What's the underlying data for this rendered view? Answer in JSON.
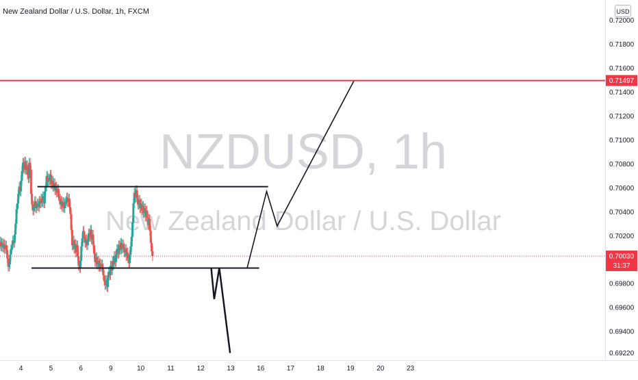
{
  "header": {
    "title": "New Zealand Dollar / U.S. Dollar, 1h, FXCM",
    "currency": "USD"
  },
  "watermark": {
    "symbol": "NZDUSD, 1h",
    "description": "New Zealand Dollar / U.S. Dollar"
  },
  "chart_data": {
    "type": "candlestick",
    "symbol": "NZDUSD",
    "interval": "1h",
    "xlim": [
      3.3,
      23.5
    ],
    "ylim": [
      0.6916,
      0.7217
    ],
    "x_ticks": [
      {
        "label": "4",
        "x": 4
      },
      {
        "label": "5",
        "x": 5
      },
      {
        "label": "6",
        "x": 6
      },
      {
        "label": "9",
        "x": 7
      },
      {
        "label": "10",
        "x": 8
      },
      {
        "label": "11",
        "x": 9
      },
      {
        "label": "12",
        "x": 10
      },
      {
        "label": "13",
        "x": 11
      },
      {
        "label": "16",
        "x": 12
      },
      {
        "label": "17",
        "x": 13
      },
      {
        "label": "18",
        "x": 14
      },
      {
        "label": "19",
        "x": 15
      },
      {
        "label": "20",
        "x": 16
      },
      {
        "label": "23",
        "x": 17
      }
    ],
    "y_ticks": [
      0.6922,
      0.694,
      0.696,
      0.698,
      0.702,
      0.704,
      0.706,
      0.708,
      0.71,
      0.712,
      0.714,
      0.716,
      0.718,
      0.72
    ],
    "price_lines": [
      {
        "name": "target",
        "value": 0.71497,
        "label": "0.71497",
        "color": "#f23645"
      }
    ],
    "last_price": {
      "value": 0.7003,
      "label": "0.70030",
      "countdown": "31:37",
      "color": "#f23645"
    },
    "hlines": [
      {
        "value": 0.7061,
        "x_start": 4.55,
        "x_end": 12.25
      },
      {
        "value": 0.6993,
        "x_start": 4.35,
        "x_end": 11.95
      }
    ],
    "projections": [
      {
        "points": [
          [
            10.35,
            0.6993
          ],
          [
            10.45,
            0.6967
          ],
          [
            10.62,
            0.6993
          ],
          [
            10.98,
            0.6922
          ]
        ]
      },
      {
        "points": [
          [
            11.55,
            0.6993
          ],
          [
            12.2,
            0.7057
          ],
          [
            12.55,
            0.7028
          ],
          [
            15.12,
            0.71497
          ]
        ]
      }
    ],
    "candles": {
      "start_x": 3.3,
      "step": 0.0305,
      "up_color": "#26a69a",
      "down_color": "#ef5350",
      "closes": [
        0.7015,
        0.7011,
        0.7014,
        0.701,
        0.7013,
        0.7009,
        0.7012,
        0.7008,
        0.7001,
        0.6994,
        0.6996,
        0.7004,
        0.7009,
        0.7012,
        0.7016,
        0.7014,
        0.7021,
        0.703,
        0.7042,
        0.7047,
        0.7055,
        0.7061,
        0.7057,
        0.7066,
        0.7074,
        0.7081,
        0.7076,
        0.7082,
        0.7075,
        0.7079,
        0.7071,
        0.7068,
        0.7081,
        0.7075,
        0.7055,
        0.7046,
        0.7041,
        0.7044,
        0.7049,
        0.7043,
        0.7045,
        0.7047,
        0.7044,
        0.7049,
        0.7047,
        0.7051,
        0.7048,
        0.7053,
        0.7047,
        0.7057,
        0.7061,
        0.707,
        0.7065,
        0.7068,
        0.7066,
        0.7071,
        0.7063,
        0.7066,
        0.7061,
        0.7064,
        0.7058,
        0.7061,
        0.7056,
        0.7059,
        0.7053,
        0.7051,
        0.7046,
        0.7049,
        0.7044,
        0.7048,
        0.7043,
        0.7047,
        0.7049,
        0.7052,
        0.7048,
        0.7051,
        0.7044,
        0.7038,
        0.7025,
        0.7012,
        0.7016,
        0.7009,
        0.7013,
        0.7006,
        0.7012,
        0.7003,
        0.6995,
        0.6993,
        0.6999,
        0.7011,
        0.7018,
        0.7024,
        0.7019,
        0.7014,
        0.7017,
        0.7012,
        0.7016,
        0.7022,
        0.7019,
        0.7025,
        0.7017,
        0.7021,
        0.7012,
        0.7005,
        0.6998,
        0.7002,
        0.6996,
        0.6999,
        0.6994,
        0.6997,
        0.6994,
        0.6996,
        0.6993,
        0.6987,
        0.6982,
        0.6979,
        0.6983,
        0.6977,
        0.6985,
        0.699,
        0.6987,
        0.6995,
        0.6991,
        0.6999,
        0.6996,
        0.7003,
        0.6998,
        0.7004,
        0.7009,
        0.7005,
        0.7012,
        0.7008,
        0.7014,
        0.7009,
        0.7013,
        0.701,
        0.7006,
        0.7009,
        0.7003,
        0.7006,
        0.7001,
        0.6997,
        0.7004,
        0.7011,
        0.7019,
        0.7031,
        0.7047,
        0.7056,
        0.7052,
        0.7058,
        0.7051,
        0.7046,
        0.705,
        0.7043,
        0.7047,
        0.7041,
        0.7045,
        0.7039,
        0.7043,
        0.7036,
        0.7041,
        0.7035,
        0.7029,
        0.7034,
        0.7024,
        0.7014,
        0.7007,
        0.7003
      ],
      "wick": 0.0004
    }
  }
}
